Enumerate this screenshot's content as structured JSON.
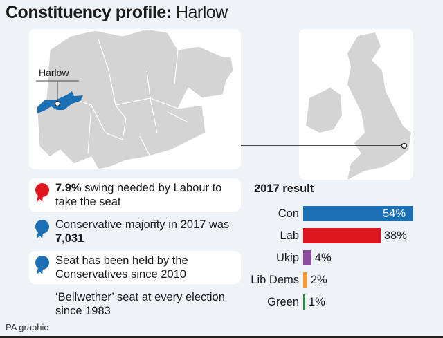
{
  "title": {
    "bold": "Constituency profile:",
    "regular": "Harlow"
  },
  "map": {
    "label": "Harlow",
    "highlight_color": "#1a6fb5",
    "region_color": "#d4d4d4"
  },
  "facts": [
    {
      "bold": "7.9%",
      "text": " swing needed by Labour to take the seat",
      "icon": "rosette-icon",
      "color": "#e0161f",
      "card": true
    },
    {
      "text": "Conservative majority in 2017 was ",
      "bold_end": "7,031",
      "icon": "rosette-icon",
      "color": "#1a6fb5",
      "card": false
    },
    {
      "text": "Seat has been held by the Conservatives since 2010",
      "icon": "rosette-icon",
      "color": "#1a6fb5",
      "card": true
    },
    {
      "text": "‘Bellwether’ seat at every election since 1983",
      "card": false
    }
  ],
  "chart_data": {
    "type": "bar",
    "orientation": "horizontal",
    "title": "2017 result",
    "categories": [
      "Con",
      "Lab",
      "Ukip",
      "Lib Dems",
      "Green"
    ],
    "values": [
      54,
      38,
      4,
      2,
      1
    ],
    "labels": [
      "54%",
      "38%",
      "4%",
      "2%",
      "1%"
    ],
    "colors": [
      "#1a6fb5",
      "#e0161f",
      "#8e4c9e",
      "#f39a3c",
      "#2b8a3e"
    ]
  },
  "footer": "PA graphic"
}
